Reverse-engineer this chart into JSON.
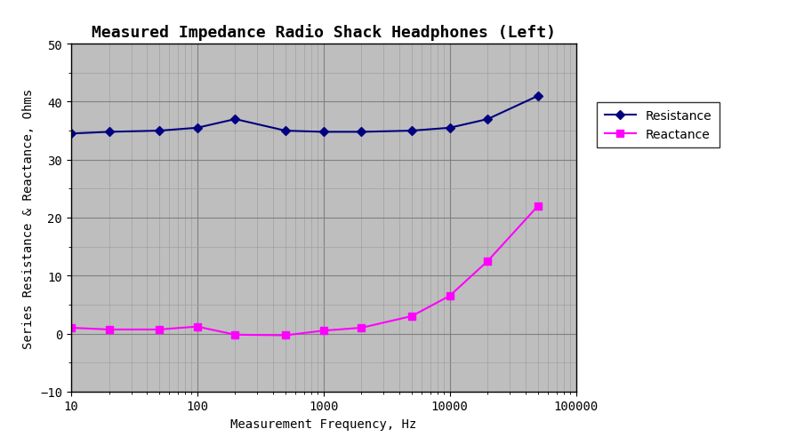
{
  "title": "Measured Impedance Radio Shack Headphones (Left)",
  "xlabel": "Measurement Frequency, Hz",
  "ylabel": "Series Resistance & Reactance, Ohms",
  "resistance_freq": [
    10,
    20,
    50,
    100,
    200,
    500,
    1000,
    2000,
    5000,
    10000,
    20000,
    50000
  ],
  "resistance_vals": [
    34.5,
    34.8,
    35.0,
    35.5,
    37.0,
    35.0,
    34.8,
    34.8,
    35.0,
    35.5,
    37.0,
    41.0
  ],
  "reactance_freq": [
    10,
    20,
    50,
    100,
    200,
    500,
    1000,
    2000,
    5000,
    10000,
    20000,
    50000
  ],
  "reactance_vals": [
    1.0,
    0.7,
    0.7,
    1.2,
    -0.2,
    -0.3,
    0.5,
    1.0,
    3.0,
    6.5,
    12.5,
    22.0
  ],
  "resistance_color": "#000080",
  "reactance_color": "#FF00FF",
  "fig_bg_color": "#FFFFFF",
  "plot_bg_color": "#BEBEBE",
  "ylim": [
    -10,
    50
  ],
  "xlim": [
    10,
    100000
  ],
  "yticks": [
    -10,
    0,
    10,
    20,
    30,
    40,
    50
  ],
  "xticks": [
    10,
    100,
    1000,
    10000,
    100000
  ],
  "grid_major_color": "#808080",
  "grid_minor_color": "#A0A0A0",
  "legend_fontsize": 10,
  "title_fontsize": 13,
  "axis_fontsize": 10,
  "tick_fontsize": 10
}
